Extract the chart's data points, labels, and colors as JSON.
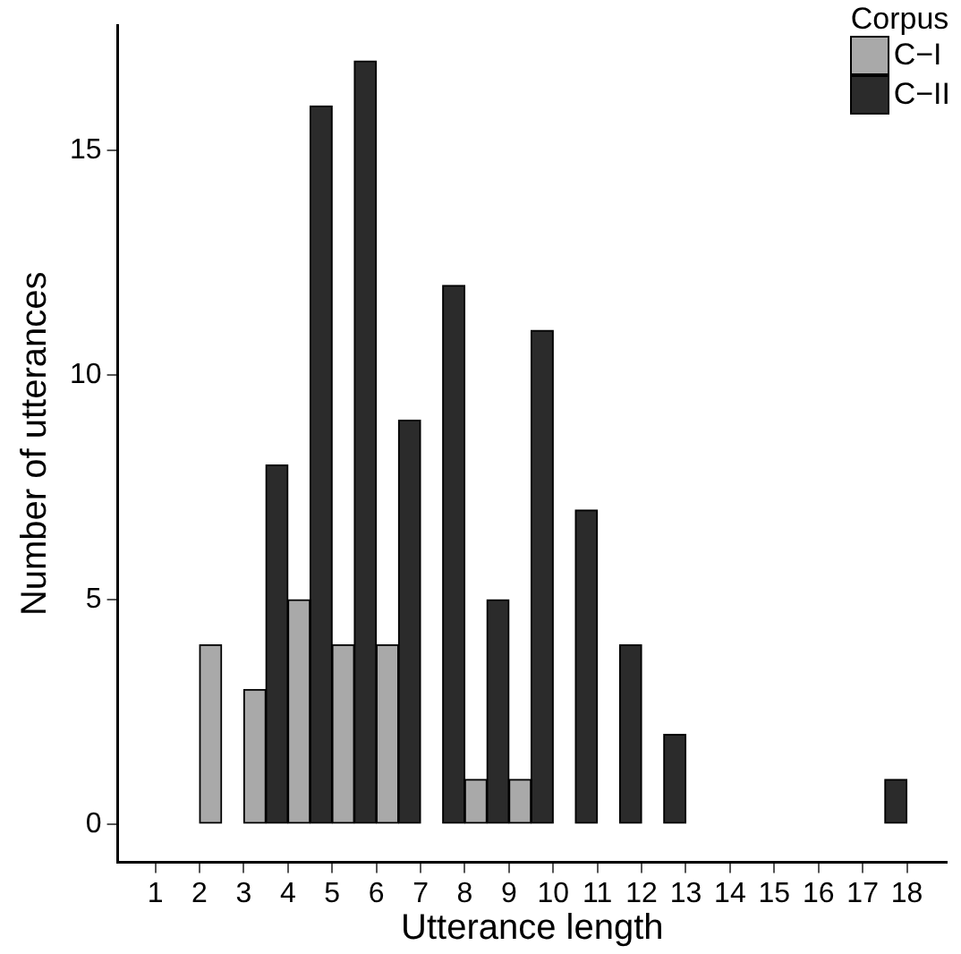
{
  "chart_data": {
    "type": "bar",
    "xlabel": "Utterance length",
    "ylabel": "Number of utterances",
    "legend_title": "Corpus",
    "legend": "top right",
    "grid": false,
    "xlim": [
      0.15,
      18.9
    ],
    "xticks": [
      1,
      2,
      3,
      4,
      5,
      6,
      7,
      8,
      9,
      10,
      11,
      12,
      13,
      14,
      15,
      16,
      17,
      18
    ],
    "ylim": [
      -0.85,
      17.8
    ],
    "yticks": [
      0,
      5,
      10,
      15
    ],
    "series": [
      {
        "name": "C−I",
        "color": "#a9a9a9",
        "x": [
          1.25,
          2.25,
          3.25,
          4.25,
          5.25,
          6.25,
          7.25,
          8.25,
          9.25,
          10.25,
          11.25,
          12.25,
          13.25,
          14.25,
          15.25,
          16.25,
          17.25
        ],
        "values": [
          0,
          4,
          3,
          5,
          4,
          4,
          0,
          1,
          1,
          0,
          0,
          0,
          0,
          0,
          0,
          0,
          0
        ]
      },
      {
        "name": "C−II",
        "color": "#2b2b2b",
        "x": [
          1.75,
          2.75,
          3.75,
          4.75,
          5.75,
          6.75,
          7.75,
          8.75,
          9.75,
          10.75,
          11.75,
          12.75,
          13.75,
          14.75,
          15.75,
          16.75,
          17.75
        ],
        "values": [
          0,
          0,
          8,
          16,
          17,
          9,
          12,
          5,
          11,
          7,
          4,
          2,
          0,
          0,
          0,
          0,
          1
        ]
      }
    ]
  }
}
